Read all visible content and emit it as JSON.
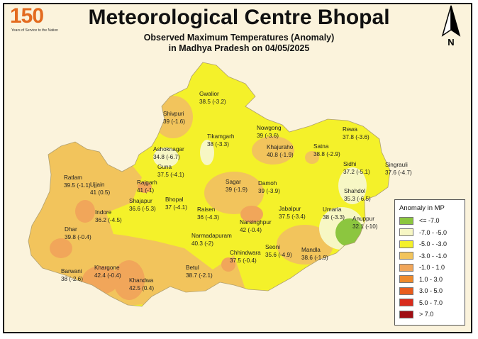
{
  "header": {
    "title": "Meteorological Centre Bhopal",
    "subtitle_line1": "Observed Maximum Temperatures (Anomaly)",
    "subtitle_line2": "in Madhya Pradesh on 04/05/2025",
    "logo_number": "150",
    "logo_caption": "Years of Service to the Nation"
  },
  "north_arrow": {
    "label": "N"
  },
  "legend": {
    "title": "Anomaly in MP",
    "items": [
      {
        "label": "<= -7.0",
        "color": "#8cc63f"
      },
      {
        "label": "-7.0 - -5.0",
        "color": "#f7f7c4"
      },
      {
        "label": "-5.0 - -3.0",
        "color": "#f4f12a"
      },
      {
        "label": "-3.0 - -1.0",
        "color": "#f2c45c"
      },
      {
        "label": "-1.0 - 1.0",
        "color": "#f1a65a"
      },
      {
        "label": "1.0 - 3.0",
        "color": "#ee8a2c"
      },
      {
        "label": "3.0 - 5.0",
        "color": "#e85d1e"
      },
      {
        "label": "5.0 - 7.0",
        "color": "#d92b1c"
      },
      {
        "label": "> 7.0",
        "color": "#a00d12"
      }
    ]
  },
  "stations": [
    {
      "name": "Gwalior",
      "value": "38.5 (-3.2)"
    },
    {
      "name": "Shivpuri",
      "value": "39 (-1.6)"
    },
    {
      "name": "Tikamgarh",
      "value": "38 (-3.3)"
    },
    {
      "name": "Nowgong",
      "value": "39 (-3.6)"
    },
    {
      "name": "Khajuraho",
      "value": "40.8 (-1.9)"
    },
    {
      "name": "Satna",
      "value": "38.8 (-2.9)"
    },
    {
      "name": "Rewa",
      "value": "37.8 (-3.6)"
    },
    {
      "name": "Sidhi",
      "value": "37.2 (-5.1)"
    },
    {
      "name": "Singrauli",
      "value": "37.6 (-4.7)"
    },
    {
      "name": "Shahdol",
      "value": "35.3 (-6.5)"
    },
    {
      "name": "Umaria",
      "value": "38 (-3.3)"
    },
    {
      "name": "Anuppur",
      "value": "32.1 (-10)"
    },
    {
      "name": "Ashoknagar",
      "value": "34.8 (-6.7)"
    },
    {
      "name": "Guna",
      "value": "37.5 (-4.1)"
    },
    {
      "name": "Rajgarh",
      "value": "41 (-1)"
    },
    {
      "name": "Sagar",
      "value": "39 (-1.9)"
    },
    {
      "name": "Damoh",
      "value": "39 (-3.9)"
    },
    {
      "name": "Ratlam",
      "value": "39.5 (-1.1)"
    },
    {
      "name": "Ujjain",
      "value": "41 (0.5)"
    },
    {
      "name": "Shajapur",
      "value": "36.6 (-5.3)"
    },
    {
      "name": "Bhopal",
      "value": "37 (-4.1)"
    },
    {
      "name": "Raisen",
      "value": "36 (-4.3)"
    },
    {
      "name": "Narsinghpur",
      "value": "42 (-0.4)"
    },
    {
      "name": "Jabalpur",
      "value": "37.5 (-3.4)"
    },
    {
      "name": "Indore",
      "value": "36.2 (-4.5)"
    },
    {
      "name": "Narmadapuram",
      "value": "40.3 (-2)"
    },
    {
      "name": "Dhar",
      "value": "39.8 (-0.4)"
    },
    {
      "name": "Chhindwara",
      "value": "37.5 (-0.4)"
    },
    {
      "name": "Seoni",
      "value": "35.6 (-4.9)"
    },
    {
      "name": "Mandla",
      "value": "38.6 (-1.9)"
    },
    {
      "name": "Khargone",
      "value": "42.4 (-0.4)"
    },
    {
      "name": "Barwani",
      "value": "38 (-2.6)"
    },
    {
      "name": "Betul",
      "value": "38.7 (-2.1)"
    },
    {
      "name": "Khandwa",
      "value": "42.5 (0.4)"
    }
  ]
}
